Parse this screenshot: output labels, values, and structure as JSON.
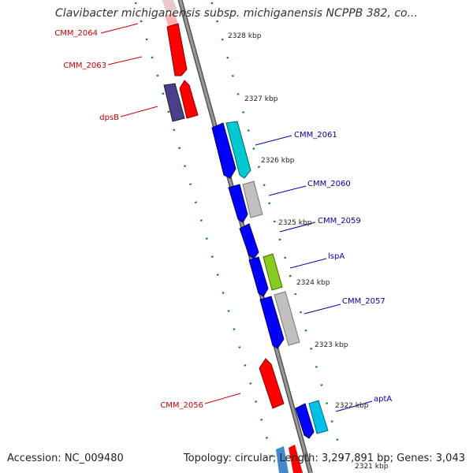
{
  "title": "Clavibacter michiganensis subsp. michiganensis NCPPB 382, co...",
  "footer": {
    "accession": "Accession: NC_009480",
    "summary": "Topology: circular; Length: 3,297,891 bp; Genes: 3,043"
  },
  "colors": {
    "forward_label": "#cc0000",
    "reverse_label": "#0000aa",
    "backbone": "#8a8a8a",
    "ticks": "#008800"
  },
  "ticks": [
    {
      "label": "2328 kbp"
    },
    {
      "label": "2327 kbp"
    },
    {
      "label": "2326 kbp"
    },
    {
      "label": "2325 kbp"
    },
    {
      "label": "2324 kbp"
    },
    {
      "label": "2323 kbp"
    },
    {
      "label": "2322 kbp"
    },
    {
      "label": "2321 kbp"
    }
  ],
  "genes": [
    {
      "name": "CMM_2064",
      "strand": "forward"
    },
    {
      "name": "CMM_2063",
      "strand": "forward"
    },
    {
      "name": "dpsB",
      "strand": "forward"
    },
    {
      "name": "CMM_2061",
      "strand": "reverse"
    },
    {
      "name": "CMM_2060",
      "strand": "reverse"
    },
    {
      "name": "CMM_2059",
      "strand": "reverse"
    },
    {
      "name": "lspA",
      "strand": "reverse"
    },
    {
      "name": "CMM_2057",
      "strand": "reverse"
    },
    {
      "name": "CMM_2056",
      "strand": "forward"
    },
    {
      "name": "aptA",
      "strand": "reverse"
    }
  ]
}
